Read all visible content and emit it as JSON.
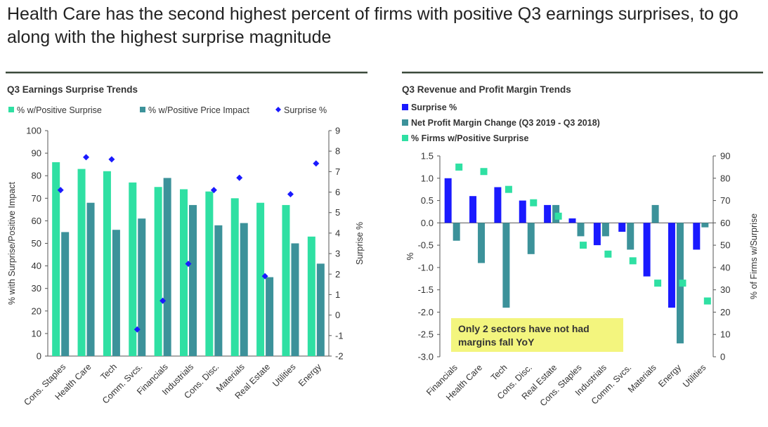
{
  "headline": "Health Care has the second highest percent of firms with positive Q3 earnings surprises, to go along with the highest surprise magnitude",
  "colors": {
    "teal_light": "#2fe0a3",
    "teal_dark": "#3c929a",
    "blue": "#1a1aff",
    "callout_bg": "#f3f57e",
    "rule": "#3b4a3b"
  },
  "chart_data": [
    {
      "type": "bar",
      "title": "Q3 Earnings Surprise Trends",
      "categories": [
        "Cons. Staples",
        "Health Care",
        "Tech",
        "Comm. Svcs.",
        "Financials",
        "Industrials",
        "Cons. Disc.",
        "Materials",
        "Real Estate",
        "Utilities",
        "Energy"
      ],
      "series": [
        {
          "name": "% w/Positive Surprise",
          "kind": "bar",
          "axis": "left",
          "values": [
            86,
            83,
            82,
            77,
            75,
            74,
            73,
            70,
            68,
            67,
            53
          ]
        },
        {
          "name": "% w/Positive Price Impact",
          "kind": "bar",
          "axis": "left",
          "values": [
            55,
            68,
            56,
            61,
            79,
            67,
            58,
            59,
            35,
            50,
            41
          ]
        },
        {
          "name": "Surprise %",
          "kind": "marker",
          "axis": "right",
          "values": [
            6.1,
            7.7,
            7.6,
            -0.7,
            0.7,
            2.5,
            6.1,
            6.7,
            1.9,
            5.9,
            7.4
          ]
        }
      ],
      "ylabel": "% with Surprise/Positive Impact",
      "y2label": "Surprise %",
      "ylim": [
        0,
        100
      ],
      "y2lim": [
        -2,
        9
      ],
      "yticks": [
        "100",
        "90",
        "80",
        "70",
        "60",
        "50",
        "40",
        "30",
        "20",
        "10",
        "0"
      ],
      "y2ticks": [
        "9",
        "8",
        "7",
        "6",
        "5",
        "4",
        "3",
        "2",
        "1",
        "0",
        "-1",
        "-2"
      ],
      "legend_position": "top"
    },
    {
      "type": "bar",
      "title": "Q3 Revenue and Profit Margin Trends",
      "categories": [
        "Financials",
        "Health Care",
        "Tech",
        "Cons. Disc.",
        "Real Estate",
        "Cons. Staples",
        "Industrials",
        "Comm. Svcs.",
        "Materials",
        "Energy",
        "Utilities"
      ],
      "series": [
        {
          "name": "Surprise %",
          "kind": "bar",
          "axis": "left",
          "values": [
            1.0,
            0.6,
            0.8,
            0.5,
            0.4,
            0.1,
            -0.5,
            -0.2,
            -1.2,
            -1.9,
            -0.6
          ]
        },
        {
          "name": "Net Profit Margin Change (Q3 2019 - Q3 2018)",
          "kind": "bar",
          "axis": "left",
          "values": [
            -0.4,
            -0.9,
            -1.9,
            -0.7,
            0.4,
            -0.3,
            -0.3,
            -0.6,
            0.4,
            -2.7,
            -0.1
          ]
        },
        {
          "name": "% Firms w/Positive Surprise",
          "kind": "marker",
          "axis": "right",
          "values": [
            85,
            83,
            75,
            69,
            63,
            50,
            46,
            43,
            33,
            33,
            25
          ]
        }
      ],
      "ylabel": "%",
      "y2label": "% of Firms w/Surprise",
      "ylim": [
        -3.0,
        1.5
      ],
      "y2lim": [
        0,
        90
      ],
      "yticks": [
        "1.5",
        "1.0",
        "0.5",
        "0.0",
        "-0.5",
        "-1.0",
        "-1.5",
        "-2.0",
        "-2.5",
        "-3.0"
      ],
      "y2ticks": [
        "90",
        "80",
        "70",
        "60",
        "50",
        "40",
        "30",
        "20",
        "10",
        "0"
      ],
      "annotation": "Only 2 sectors have not had margins fall YoY",
      "legend_position": "top-left"
    }
  ]
}
